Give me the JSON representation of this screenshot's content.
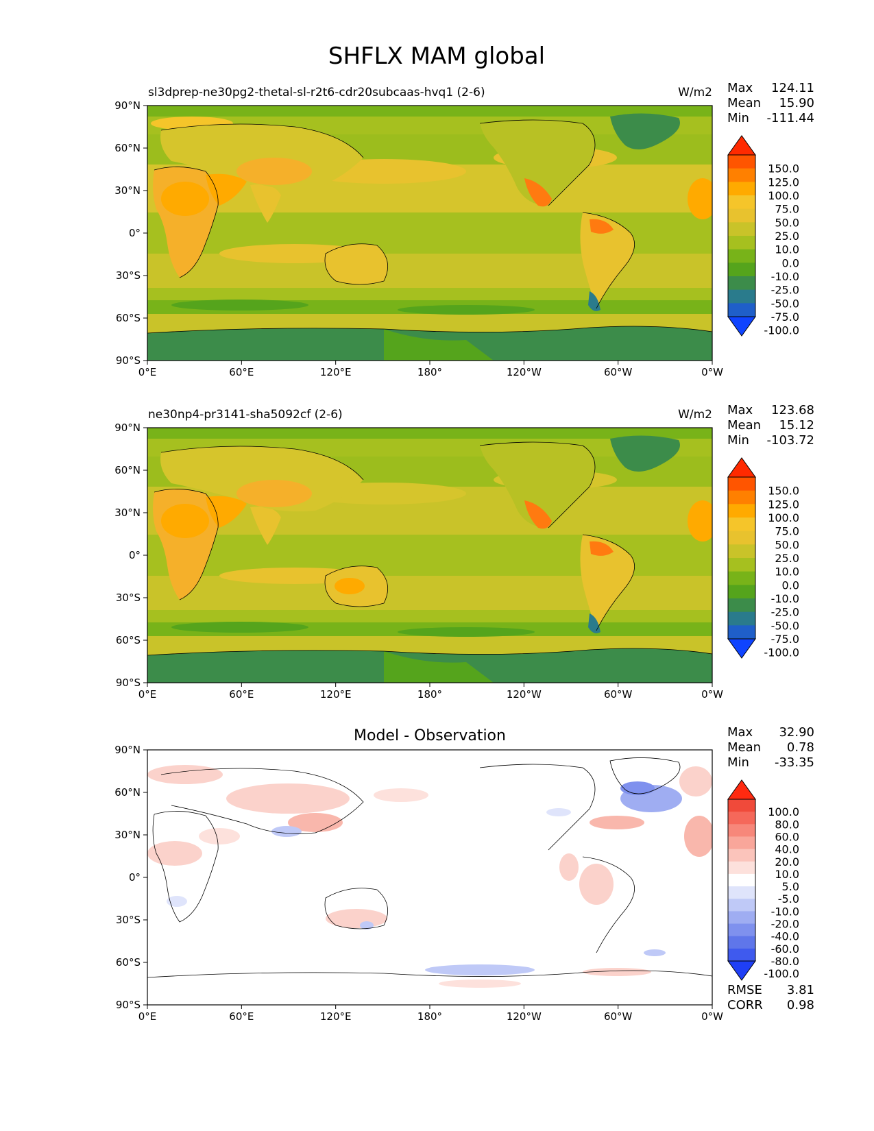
{
  "figure": {
    "title": "SHFLX MAM global"
  },
  "axes": {
    "lat_ticks": [
      "90°N",
      "60°N",
      "30°N",
      "0°",
      "30°S",
      "60°S",
      "90°S"
    ],
    "lon_ticks": [
      "0°E",
      "60°E",
      "120°E",
      "180°",
      "120°W",
      "60°W",
      "0°W"
    ]
  },
  "panels": [
    {
      "left_title": "sl3dprep-ne30pg2-thetal-sl-r2t6-cdr20subcaas-hvq1 (2-6)",
      "center_title": "",
      "units": "W/m2",
      "stats": [
        {
          "label": "Max",
          "value": "124.11"
        },
        {
          "label": "Mean",
          "value": "15.90"
        },
        {
          "label": "Min",
          "value": "-111.44"
        }
      ],
      "colorbar": {
        "labels": [
          "150.0",
          "125.0",
          "100.0",
          "75.0",
          "50.0",
          "25.0",
          "10.0",
          "0.0",
          "-10.0",
          "-25.0",
          "-50.0",
          "-75.0",
          "-100.0"
        ],
        "colors": [
          "#ff2a00",
          "#ff5500",
          "#ff8000",
          "#ffaa00",
          "#f5c52a",
          "#e8c22e",
          "#c9c329",
          "#a6c01f",
          "#78b319",
          "#55a41c",
          "#3c8c4a",
          "#2a7b8c",
          "#1f5fc9",
          "#0f44ff"
        ]
      },
      "footer_stats": []
    },
    {
      "left_title": "ne30np4-pr3141-sha5092cf (2-6)",
      "center_title": "",
      "units": "W/m2",
      "stats": [
        {
          "label": "Max",
          "value": "123.68"
        },
        {
          "label": "Mean",
          "value": "15.12"
        },
        {
          "label": "Min",
          "value": "-103.72"
        }
      ],
      "colorbar": {
        "labels": [
          "150.0",
          "125.0",
          "100.0",
          "75.0",
          "50.0",
          "25.0",
          "10.0",
          "0.0",
          "-10.0",
          "-25.0",
          "-50.0",
          "-75.0",
          "-100.0"
        ],
        "colors": [
          "#ff2a00",
          "#ff5500",
          "#ff8000",
          "#ffaa00",
          "#f5c52a",
          "#e8c22e",
          "#c9c329",
          "#a6c01f",
          "#78b319",
          "#55a41c",
          "#3c8c4a",
          "#2a7b8c",
          "#1f5fc9",
          "#0f44ff"
        ]
      },
      "footer_stats": []
    },
    {
      "left_title": "",
      "center_title": "Model - Observation",
      "units": "",
      "stats": [
        {
          "label": "Max",
          "value": "32.90"
        },
        {
          "label": "Mean",
          "value": "0.78"
        },
        {
          "label": "Min",
          "value": "-33.35"
        }
      ],
      "colorbar": {
        "labels": [
          "100.0",
          "80.0",
          "60.0",
          "40.0",
          "20.0",
          "10.0",
          "5.0",
          "-5.0",
          "-10.0",
          "-20.0",
          "-40.0",
          "-60.0",
          "-80.0",
          "-100.0"
        ],
        "colors": [
          "#ff2a10",
          "#f04a3a",
          "#f5685a",
          "#f7877a",
          "#f9a69a",
          "#fbc4bb",
          "#fde1dc",
          "#ffffff",
          "#dfe4fb",
          "#bfc9f7",
          "#9fadf2",
          "#7f91ee",
          "#5f76ea",
          "#3f5aee",
          "#1f3ff5"
        ]
      },
      "footer_stats": [
        {
          "label": "RMSE",
          "value": "3.81"
        },
        {
          "label": "CORR",
          "value": "0.98"
        }
      ]
    }
  ]
}
